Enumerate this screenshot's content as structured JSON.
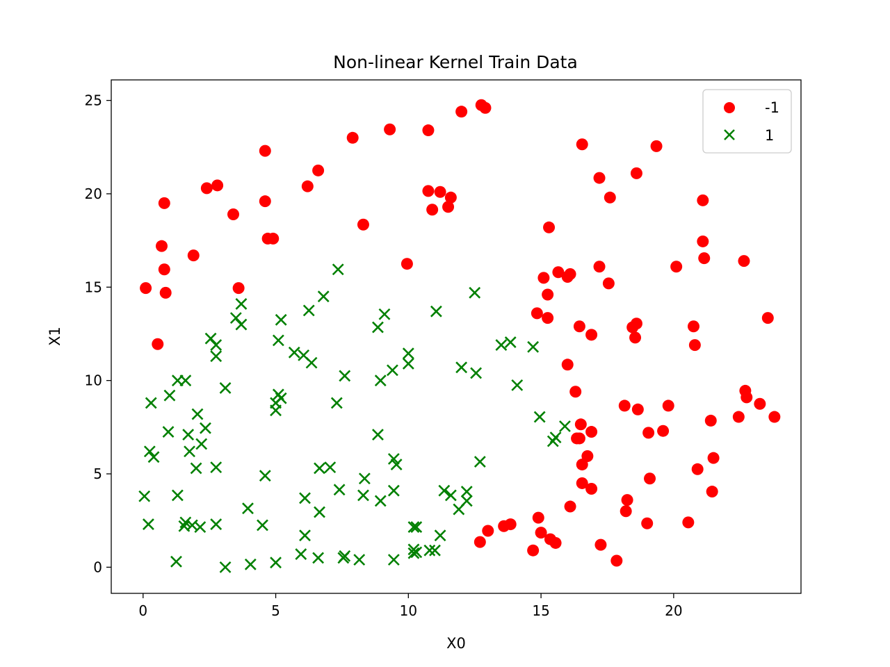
{
  "chart_data": {
    "type": "scatter",
    "title": "Non-linear Kernel Train Data",
    "xlabel": "X0",
    "ylabel": "X1",
    "xlim": [
      -1.2,
      24.8
    ],
    "ylim": [
      -1.4,
      26.1
    ],
    "xticks": [
      0,
      5,
      10,
      15,
      20
    ],
    "yticks": [
      0,
      5,
      10,
      15,
      20,
      25
    ],
    "grid": false,
    "legend_position": "top-right",
    "series": [
      {
        "name": "-1",
        "marker": "circle",
        "color": "#ff0000",
        "points": [
          [
            0.1,
            14.95
          ],
          [
            0.55,
            11.95
          ],
          [
            0.7,
            17.2
          ],
          [
            0.8,
            15.95
          ],
          [
            0.85,
            14.7
          ],
          [
            0.8,
            19.5
          ],
          [
            1.9,
            16.7
          ],
          [
            2.4,
            20.3
          ],
          [
            2.8,
            20.45
          ],
          [
            3.4,
            18.9
          ],
          [
            3.6,
            14.95
          ],
          [
            4.6,
            22.3
          ],
          [
            4.6,
            19.6
          ],
          [
            4.7,
            17.6
          ],
          [
            4.9,
            17.6
          ],
          [
            6.2,
            20.4
          ],
          [
            6.6,
            21.25
          ],
          [
            7.9,
            23.0
          ],
          [
            8.3,
            18.35
          ],
          [
            9.3,
            23.45
          ],
          [
            9.95,
            16.25
          ],
          [
            10.75,
            23.4
          ],
          [
            10.75,
            20.15
          ],
          [
            10.9,
            19.15
          ],
          [
            11.2,
            20.1
          ],
          [
            11.5,
            19.3
          ],
          [
            11.6,
            19.8
          ],
          [
            12.0,
            24.4
          ],
          [
            12.75,
            24.75
          ],
          [
            12.9,
            24.6
          ],
          [
            12.7,
            1.35
          ],
          [
            13.0,
            1.95
          ],
          [
            13.6,
            2.2
          ],
          [
            13.85,
            2.3
          ],
          [
            14.7,
            0.9
          ],
          [
            14.85,
            13.6
          ],
          [
            14.9,
            2.65
          ],
          [
            15.0,
            1.85
          ],
          [
            15.1,
            15.5
          ],
          [
            15.25,
            14.6
          ],
          [
            15.25,
            13.35
          ],
          [
            15.3,
            18.2
          ],
          [
            15.35,
            1.5
          ],
          [
            15.55,
            1.3
          ],
          [
            15.65,
            15.8
          ],
          [
            16.0,
            10.85
          ],
          [
            16.0,
            15.55
          ],
          [
            16.1,
            3.25
          ],
          [
            16.1,
            15.7
          ],
          [
            16.3,
            9.4
          ],
          [
            16.35,
            6.9
          ],
          [
            16.45,
            6.9
          ],
          [
            16.45,
            12.9
          ],
          [
            16.5,
            7.65
          ],
          [
            16.55,
            5.5
          ],
          [
            16.55,
            4.5
          ],
          [
            16.55,
            22.65
          ],
          [
            16.75,
            5.95
          ],
          [
            16.9,
            7.25
          ],
          [
            16.9,
            12.45
          ],
          [
            16.9,
            4.2
          ],
          [
            17.2,
            16.1
          ],
          [
            17.2,
            20.85
          ],
          [
            17.25,
            1.2
          ],
          [
            17.55,
            15.2
          ],
          [
            17.6,
            19.8
          ],
          [
            17.85,
            0.35
          ],
          [
            18.15,
            8.65
          ],
          [
            18.2,
            3.0
          ],
          [
            18.25,
            3.6
          ],
          [
            18.45,
            12.85
          ],
          [
            18.55,
            12.3
          ],
          [
            18.6,
            13.05
          ],
          [
            18.6,
            21.1
          ],
          [
            18.65,
            8.45
          ],
          [
            19.0,
            2.35
          ],
          [
            19.05,
            7.2
          ],
          [
            19.1,
            4.75
          ],
          [
            19.35,
            22.55
          ],
          [
            19.6,
            7.3
          ],
          [
            19.8,
            8.65
          ],
          [
            20.1,
            16.1
          ],
          [
            20.55,
            2.4
          ],
          [
            20.75,
            12.9
          ],
          [
            20.8,
            11.9
          ],
          [
            20.9,
            5.25
          ],
          [
            21.1,
            19.65
          ],
          [
            21.1,
            17.45
          ],
          [
            21.15,
            16.55
          ],
          [
            21.4,
            7.85
          ],
          [
            21.45,
            4.05
          ],
          [
            21.5,
            5.85
          ],
          [
            22.45,
            8.05
          ],
          [
            22.65,
            16.4
          ],
          [
            22.7,
            9.45
          ],
          [
            22.75,
            9.1
          ],
          [
            23.25,
            8.75
          ],
          [
            23.55,
            13.35
          ],
          [
            23.8,
            8.05
          ]
        ]
      },
      {
        "name": "1",
        "marker": "x",
        "color": "#008000",
        "points": [
          [
            0.05,
            3.8
          ],
          [
            0.2,
            2.3
          ],
          [
            0.25,
            6.2
          ],
          [
            0.3,
            8.8
          ],
          [
            0.4,
            5.9
          ],
          [
            0.95,
            7.25
          ],
          [
            1.0,
            9.2
          ],
          [
            1.3,
            10.0
          ],
          [
            1.3,
            3.85
          ],
          [
            1.25,
            0.3
          ],
          [
            1.6,
            10.0
          ],
          [
            1.55,
            2.2
          ],
          [
            1.6,
            2.4
          ],
          [
            1.7,
            7.1
          ],
          [
            1.75,
            6.2
          ],
          [
            1.85,
            2.25
          ],
          [
            2.0,
            5.3
          ],
          [
            2.05,
            8.2
          ],
          [
            2.15,
            2.15
          ],
          [
            2.2,
            6.6
          ],
          [
            2.35,
            7.45
          ],
          [
            2.55,
            12.25
          ],
          [
            2.75,
            11.9
          ],
          [
            2.75,
            11.3
          ],
          [
            2.75,
            2.3
          ],
          [
            2.75,
            5.35
          ],
          [
            3.1,
            9.6
          ],
          [
            3.1,
            0.0
          ],
          [
            3.5,
            13.35
          ],
          [
            3.7,
            13.0
          ],
          [
            3.7,
            14.1
          ],
          [
            3.95,
            3.15
          ],
          [
            4.05,
            0.15
          ],
          [
            4.5,
            2.25
          ],
          [
            4.6,
            4.9
          ],
          [
            5.0,
            8.8
          ],
          [
            5.0,
            8.4
          ],
          [
            5.0,
            0.25
          ],
          [
            5.1,
            9.25
          ],
          [
            5.1,
            12.15
          ],
          [
            5.2,
            13.25
          ],
          [
            5.2,
            9.05
          ],
          [
            5.7,
            11.5
          ],
          [
            5.95,
            0.7
          ],
          [
            6.05,
            11.35
          ],
          [
            6.1,
            3.7
          ],
          [
            6.1,
            1.7
          ],
          [
            6.25,
            13.75
          ],
          [
            6.35,
            10.95
          ],
          [
            6.6,
            0.5
          ],
          [
            6.65,
            5.3
          ],
          [
            6.65,
            2.95
          ],
          [
            6.8,
            14.5
          ],
          [
            7.05,
            5.35
          ],
          [
            7.3,
            8.8
          ],
          [
            7.35,
            15.95
          ],
          [
            7.4,
            4.15
          ],
          [
            7.55,
            0.5
          ],
          [
            7.6,
            10.25
          ],
          [
            7.6,
            0.6
          ],
          [
            8.15,
            0.4
          ],
          [
            8.3,
            3.85
          ],
          [
            8.35,
            4.75
          ],
          [
            8.85,
            7.1
          ],
          [
            8.85,
            12.85
          ],
          [
            8.95,
            10.0
          ],
          [
            8.95,
            3.55
          ],
          [
            9.1,
            13.55
          ],
          [
            9.4,
            10.55
          ],
          [
            9.45,
            0.4
          ],
          [
            9.45,
            4.1
          ],
          [
            9.45,
            5.8
          ],
          [
            9.55,
            5.5
          ],
          [
            10.0,
            11.45
          ],
          [
            10.0,
            10.9
          ],
          [
            10.2,
            0.95
          ],
          [
            10.2,
            0.75
          ],
          [
            10.2,
            2.15
          ],
          [
            10.3,
            0.8
          ],
          [
            10.3,
            2.15
          ],
          [
            10.8,
            0.9
          ],
          [
            11.0,
            0.9
          ],
          [
            11.05,
            13.7
          ],
          [
            11.2,
            1.7
          ],
          [
            11.35,
            4.1
          ],
          [
            11.6,
            3.85
          ],
          [
            11.9,
            3.1
          ],
          [
            12.0,
            10.7
          ],
          [
            12.2,
            4.05
          ],
          [
            12.2,
            3.55
          ],
          [
            12.5,
            14.7
          ],
          [
            12.55,
            10.4
          ],
          [
            12.7,
            5.65
          ],
          [
            13.5,
            11.9
          ],
          [
            13.85,
            12.05
          ],
          [
            14.1,
            9.75
          ],
          [
            14.7,
            11.8
          ],
          [
            14.95,
            8.05
          ],
          [
            15.45,
            6.75
          ],
          [
            15.55,
            6.95
          ],
          [
            15.9,
            7.55
          ]
        ]
      }
    ]
  }
}
